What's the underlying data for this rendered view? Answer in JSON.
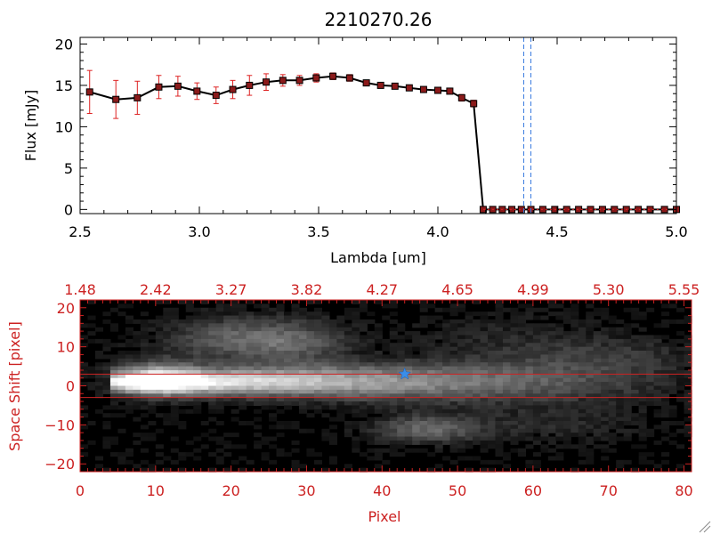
{
  "colors": {
    "background": "#ffffff",
    "axis": "#000000",
    "accent": "#cc2222",
    "errorbar": "#dd2222",
    "marker_fill": "#8b1a1a",
    "marker_edge": "#000000",
    "dashed_line": "#3a7be0",
    "star": "#3a8ee8"
  },
  "chart_data": [
    {
      "type": "line",
      "title": "2210270.26",
      "xlabel": "Lambda [um]",
      "ylabel": "Flux [mJy]",
      "xlim": [
        2.5,
        5.0
      ],
      "ylim": [
        -0.5,
        20.8
      ],
      "xticks": [
        2.5,
        3.0,
        3.5,
        4.0,
        4.5,
        5.0
      ],
      "xtick_labels": [
        "2.5",
        "3.0",
        "3.5",
        "4.0",
        "4.5",
        "5.0"
      ],
      "yticks": [
        0,
        5,
        10,
        15,
        20
      ],
      "ytick_labels": [
        "0",
        "5",
        "10",
        "15",
        "20"
      ],
      "grid": false,
      "vlines_dashed": [
        4.36,
        4.39
      ],
      "series": [
        {
          "x": [
            2.54,
            2.65,
            2.74,
            2.83,
            2.91,
            2.99,
            3.07,
            3.14,
            3.21,
            3.28,
            3.35,
            3.42,
            3.49,
            3.56,
            3.63,
            3.7,
            3.76,
            3.82,
            3.88,
            3.94,
            4.0,
            4.05,
            4.1,
            4.15,
            4.19,
            4.23,
            4.27,
            4.31,
            4.35,
            4.39,
            4.44,
            4.49,
            4.54,
            4.59,
            4.64,
            4.69,
            4.74,
            4.79,
            4.84,
            4.89,
            4.95,
            5.0
          ],
          "y": [
            14.2,
            13.3,
            13.5,
            14.8,
            14.9,
            14.3,
            13.8,
            14.5,
            15.0,
            15.4,
            15.6,
            15.6,
            15.9,
            16.1,
            15.9,
            15.3,
            15.0,
            14.9,
            14.7,
            14.5,
            14.4,
            14.3,
            13.5,
            12.8,
            0,
            0,
            0,
            0,
            0,
            0,
            0,
            0,
            0,
            0,
            0,
            0,
            0,
            0,
            0,
            0,
            0,
            0
          ],
          "yerr": [
            2.6,
            2.3,
            2.0,
            1.4,
            1.2,
            1.0,
            1.0,
            1.1,
            1.2,
            1.0,
            0.7,
            0.6,
            0.5,
            0.4,
            0.4,
            0.3,
            0.3,
            0.3,
            0.3,
            0.3,
            0.3,
            0.3,
            0.4,
            0.4,
            0,
            0,
            0,
            0,
            0,
            0,
            0,
            0,
            0,
            0,
            0,
            0,
            0,
            0,
            0,
            0,
            0,
            0
          ]
        }
      ]
    },
    {
      "type": "heatmap",
      "xlabel": "Pixel",
      "ylabel": "Space Shift [pixel]",
      "xlim": [
        0,
        81
      ],
      "ylim": [
        -22,
        22
      ],
      "xticks": [
        0,
        10,
        20,
        30,
        40,
        50,
        60,
        70,
        80
      ],
      "xtick_labels": [
        "0",
        "10",
        "20",
        "30",
        "40",
        "50",
        "60",
        "70",
        "80"
      ],
      "yticks": [
        -20,
        -10,
        0,
        10,
        20
      ],
      "ytick_labels": [
        "−20",
        "−10",
        "0",
        "10",
        "20"
      ],
      "top_axis_ticks": [
        0,
        10,
        20,
        30,
        40,
        50,
        60,
        70,
        80
      ],
      "top_axis_labels": [
        "1.48",
        "2.42",
        "3.27",
        "3.82",
        "4.27",
        "4.65",
        "4.99",
        "5.30",
        "5.55"
      ],
      "hlines": [
        3,
        -3
      ],
      "star_marker": {
        "x": 43,
        "y": 3
      },
      "colormap": "grayscale"
    }
  ]
}
